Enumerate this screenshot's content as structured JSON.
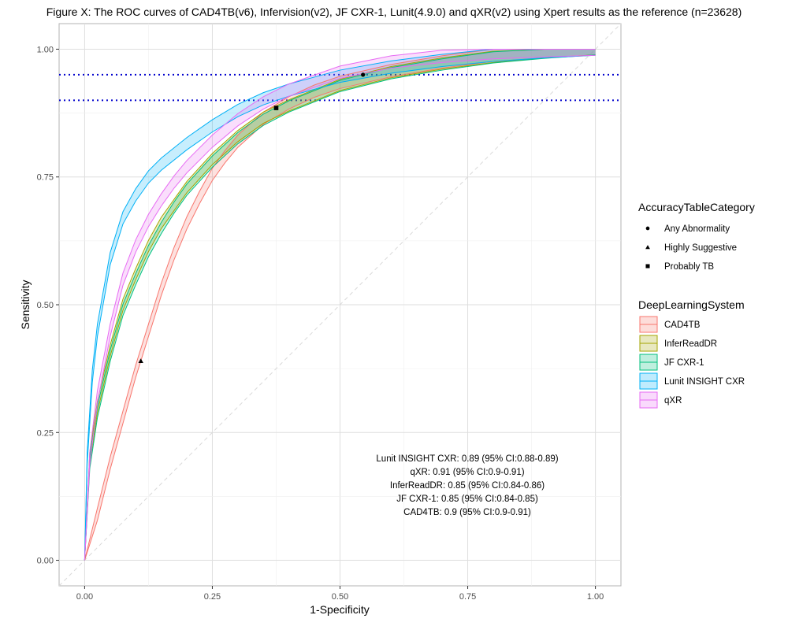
{
  "chart_data": {
    "type": "line",
    "title": "Figure X: The ROC curves of  CAD4TB(v6), Infervision(v2), JF CXR-1, Lunit(4.9.0) and qXR(v2) using Xpert results as the reference (n=23628)",
    "xlabel": "1-Specificity",
    "ylabel": "Sensitivity",
    "xlim": [
      -0.05,
      1.05
    ],
    "ylim": [
      -0.05,
      1.05
    ],
    "x_ticks": [
      {
        "value": 0.0,
        "label": "0.00"
      },
      {
        "value": 0.25,
        "label": "0.25"
      },
      {
        "value": 0.5,
        "label": "0.50"
      },
      {
        "value": 0.75,
        "label": "0.75"
      },
      {
        "value": 1.0,
        "label": "1.00"
      }
    ],
    "y_ticks": [
      {
        "value": 0.0,
        "label": "0.00"
      },
      {
        "value": 0.25,
        "label": "0.25"
      },
      {
        "value": 0.5,
        "label": "0.50"
      },
      {
        "value": 0.75,
        "label": "0.75"
      },
      {
        "value": 1.0,
        "label": "1.00"
      }
    ],
    "grid": true,
    "reference_lines": [
      {
        "type": "hline",
        "y": 0.95,
        "color": "#0000cd",
        "style": "dotted"
      },
      {
        "type": "hline",
        "y": 0.9,
        "color": "#0000cd",
        "style": "dotted"
      },
      {
        "type": "diagonal",
        "color": "#d9d9d9",
        "style": "dashed"
      }
    ],
    "series": [
      {
        "name": "CAD4TB",
        "color": "#f8766d",
        "x": [
          0,
          0.025,
          0.05,
          0.075,
          0.1,
          0.125,
          0.15,
          0.175,
          0.2,
          0.225,
          0.25,
          0.275,
          0.3,
          0.35,
          0.4,
          0.45,
          0.5,
          0.6,
          0.7,
          0.8,
          0.9,
          1.0
        ],
        "y": [
          0,
          0.09,
          0.19,
          0.28,
          0.37,
          0.45,
          0.53,
          0.6,
          0.66,
          0.71,
          0.755,
          0.79,
          0.82,
          0.865,
          0.895,
          0.918,
          0.935,
          0.958,
          0.975,
          0.988,
          0.995,
          1.0
        ],
        "band": 0.012
      },
      {
        "name": "InferReadDR",
        "color": "#a3a500",
        "x": [
          0,
          0.01,
          0.025,
          0.05,
          0.075,
          0.1,
          0.125,
          0.15,
          0.175,
          0.2,
          0.25,
          0.3,
          0.35,
          0.4,
          0.5,
          0.6,
          0.7,
          0.8,
          0.9,
          1.0
        ],
        "y": [
          0,
          0.2,
          0.3,
          0.41,
          0.5,
          0.56,
          0.615,
          0.66,
          0.695,
          0.73,
          0.785,
          0.83,
          0.866,
          0.89,
          0.93,
          0.955,
          0.972,
          0.985,
          0.994,
          1.0
        ],
        "band": 0.011
      },
      {
        "name": "JF CXR-1",
        "color": "#00bf7d",
        "x": [
          0,
          0.01,
          0.025,
          0.05,
          0.075,
          0.1,
          0.125,
          0.15,
          0.175,
          0.2,
          0.25,
          0.3,
          0.35,
          0.4,
          0.5,
          0.6,
          0.7,
          0.8,
          0.9,
          1.0
        ],
        "y": [
          0,
          0.19,
          0.29,
          0.4,
          0.49,
          0.55,
          0.605,
          0.65,
          0.69,
          0.725,
          0.78,
          0.826,
          0.862,
          0.888,
          0.928,
          0.953,
          0.97,
          0.984,
          0.993,
          1.0
        ],
        "band": 0.011
      },
      {
        "name": "Lunit INSIGHT CXR",
        "color": "#00b0f6",
        "x": [
          0,
          0.005,
          0.015,
          0.025,
          0.05,
          0.075,
          0.1,
          0.125,
          0.15,
          0.2,
          0.25,
          0.3,
          0.35,
          0.4,
          0.5,
          0.6,
          0.7,
          0.8,
          0.9,
          1.0
        ],
        "y": [
          0,
          0.2,
          0.36,
          0.45,
          0.59,
          0.67,
          0.715,
          0.75,
          0.775,
          0.815,
          0.85,
          0.88,
          0.903,
          0.92,
          0.947,
          0.965,
          0.978,
          0.988,
          0.995,
          1.0
        ],
        "band": 0.012
      },
      {
        "name": "qXR",
        "color": "#e76bf3",
        "x": [
          0,
          0.01,
          0.025,
          0.05,
          0.075,
          0.1,
          0.125,
          0.15,
          0.175,
          0.2,
          0.25,
          0.3,
          0.35,
          0.4,
          0.5,
          0.6,
          0.7,
          0.8,
          0.9,
          1.0
        ],
        "y": [
          0,
          0.2,
          0.32,
          0.45,
          0.55,
          0.615,
          0.665,
          0.705,
          0.74,
          0.77,
          0.82,
          0.862,
          0.895,
          0.92,
          0.955,
          0.975,
          0.986,
          0.993,
          0.997,
          1.0
        ],
        "band": 0.012
      }
    ],
    "points": [
      {
        "category": "Any Abnormality",
        "shape": "circle",
        "x": 0.545,
        "y": 0.95
      },
      {
        "category": "Highly Suggestive",
        "shape": "triangle",
        "x": 0.11,
        "y": 0.39
      },
      {
        "category": "Probably TB",
        "shape": "square",
        "x": 0.375,
        "y": 0.885
      }
    ],
    "legends": [
      {
        "title": "AccuracyTableCategory",
        "entries": [
          {
            "label": "Any Abnormality",
            "shape": "circle"
          },
          {
            "label": "Highly Suggestive",
            "shape": "triangle"
          },
          {
            "label": "Probably TB",
            "shape": "square"
          }
        ]
      },
      {
        "title": "DeepLearningSystem",
        "entries": [
          {
            "label": "CAD4TB",
            "color": "#f8766d"
          },
          {
            "label": "InferReadDR",
            "color": "#a3a500"
          },
          {
            "label": "JF CXR-1",
            "color": "#00bf7d"
          },
          {
            "label": "Lunit INSIGHT CXR",
            "color": "#00b0f6"
          },
          {
            "label": "qXR",
            "color": "#e76bf3"
          }
        ]
      }
    ],
    "annotations": [
      "Lunit INSIGHT CXR: 0.89 (95% CI:0.88-0.89)",
      "qXR: 0.91 (95% CI:0.9-0.91)",
      "InferReadDR: 0.85 (95% CI:0.84-0.86)",
      "JF CXR-1: 0.85 (95% CI:0.84-0.85)",
      "CAD4TB: 0.9 (95% CI:0.9-0.91)"
    ]
  }
}
